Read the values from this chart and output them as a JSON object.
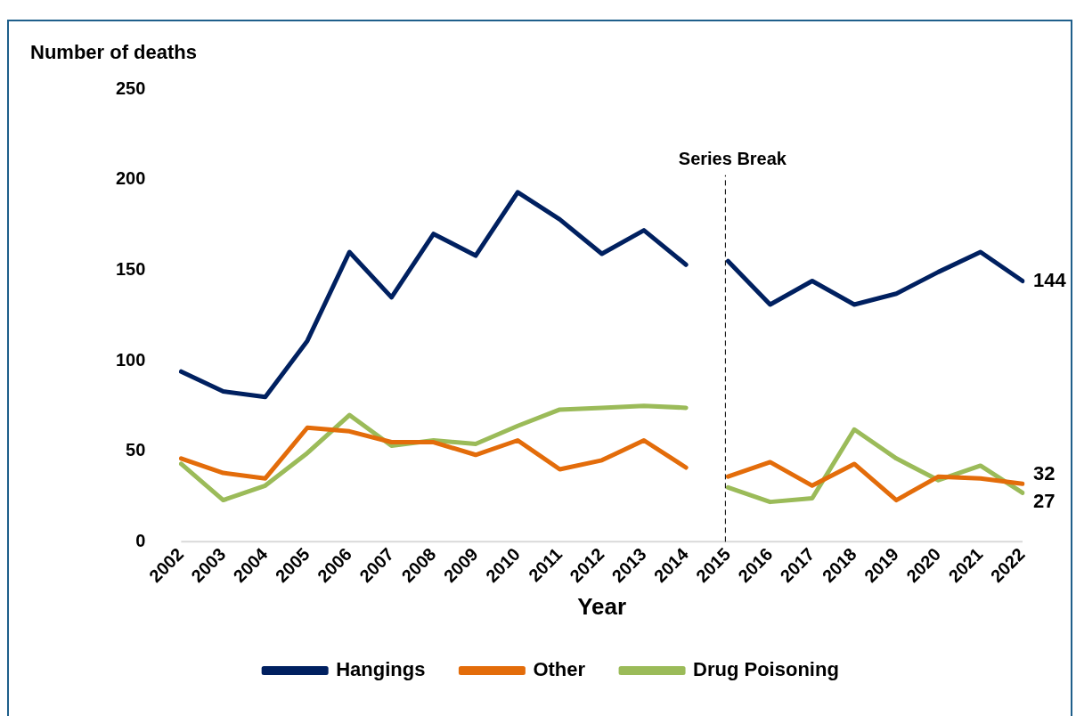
{
  "chart_data": {
    "type": "line",
    "xlabel": "Year",
    "ylabel": "Number of deaths",
    "categories": [
      "2002",
      "2003",
      "2004",
      "2005",
      "2006",
      "2007",
      "2008",
      "2009",
      "2010",
      "2011",
      "2012",
      "2013",
      "2014",
      "2015",
      "2016",
      "2017",
      "2018",
      "2019",
      "2020",
      "2021",
      "2022"
    ],
    "series": [
      {
        "name": "Hangings",
        "color": "#002060",
        "values": [
          94,
          83,
          80,
          111,
          160,
          135,
          170,
          158,
          193,
          178,
          159,
          172,
          153,
          155,
          131,
          144,
          131,
          137,
          149,
          160,
          144
        ],
        "value_labels": [
          null,
          null,
          null,
          null,
          null,
          null,
          null,
          null,
          null,
          null,
          null,
          null,
          null,
          null,
          null,
          null,
          null,
          null,
          null,
          null,
          "144"
        ]
      },
      {
        "name": "Other",
        "color": "#e36c0a",
        "values": [
          46,
          38,
          35,
          63,
          61,
          55,
          55,
          48,
          56,
          40,
          45,
          56,
          41,
          36,
          44,
          31,
          43,
          23,
          36,
          35,
          32
        ],
        "value_labels": [
          null,
          null,
          null,
          null,
          null,
          null,
          null,
          null,
          null,
          null,
          null,
          null,
          null,
          null,
          null,
          null,
          null,
          null,
          null,
          null,
          "32"
        ]
      },
      {
        "name": "Drug Poisoning",
        "color": "#9bbb59",
        "values": [
          43,
          23,
          31,
          49,
          70,
          53,
          56,
          54,
          64,
          73,
          74,
          75,
          74,
          30,
          22,
          24,
          62,
          46,
          34,
          42,
          27
        ],
        "value_labels": [
          null,
          null,
          null,
          null,
          null,
          null,
          null,
          null,
          null,
          null,
          null,
          null,
          null,
          null,
          null,
          null,
          null,
          null,
          null,
          null,
          "27"
        ]
      }
    ],
    "ylim": [
      0,
      250
    ],
    "yticks": [
      0,
      50,
      100,
      150,
      200,
      250
    ],
    "ref_lines": [
      {
        "axis": "x",
        "value": "2015",
        "label": "Series Break",
        "color": "#000000",
        "line_style": "dashed"
      }
    ],
    "grid": false,
    "legend": "bottom",
    "marker": "none",
    "line_style": "solid"
  }
}
